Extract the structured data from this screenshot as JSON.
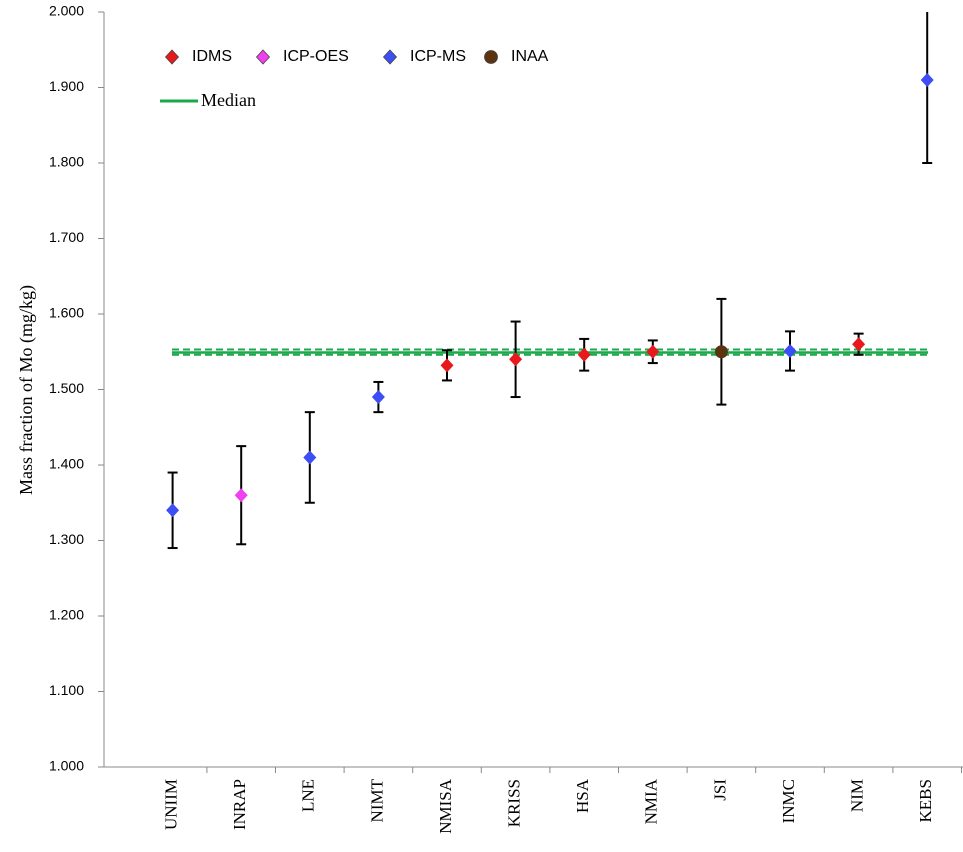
{
  "chart_data": {
    "type": "scatter",
    "y_label": "Mass fraction of Mo (mg/kg)",
    "categories": [
      "UNIIM",
      "INRAP",
      "LNE",
      "NIMT",
      "NMISA",
      "KRISS",
      "HSA",
      "NMIA",
      "JSI",
      "INMC",
      "NIM",
      "KEBS"
    ],
    "series": [
      {
        "name": "IDMS",
        "color": "#e8191c",
        "marker": "diamond",
        "values": [
          null,
          null,
          null,
          null,
          1.532,
          1.54,
          1.546,
          1.55,
          null,
          null,
          1.56,
          null
        ],
        "errors": [
          null,
          null,
          null,
          null,
          0.02,
          0.05,
          0.021,
          0.015,
          null,
          null,
          0.014,
          null
        ]
      },
      {
        "name": "ICP-OES",
        "color": "#f040f0",
        "marker": "diamond",
        "values": [
          null,
          1.36,
          null,
          null,
          null,
          null,
          null,
          null,
          null,
          null,
          null,
          null
        ],
        "errors": [
          null,
          0.065,
          null,
          null,
          null,
          null,
          null,
          null,
          null,
          null,
          null,
          null
        ]
      },
      {
        "name": "ICP-MS",
        "color": "#3d4ef5",
        "marker": "diamond",
        "values": [
          1.34,
          null,
          1.41,
          1.49,
          null,
          null,
          null,
          null,
          null,
          1.551,
          null,
          1.91
        ],
        "errors": [
          0.05,
          null,
          0.06,
          0.02,
          null,
          null,
          null,
          null,
          null,
          0.026,
          null,
          0.11
        ]
      },
      {
        "name": "INAA",
        "color": "#5c3310",
        "marker": "circle",
        "values": [
          null,
          null,
          null,
          null,
          null,
          null,
          null,
          null,
          1.55,
          null,
          null,
          null
        ],
        "errors": [
          null,
          null,
          null,
          null,
          null,
          null,
          null,
          null,
          0.07,
          null,
          null,
          null
        ]
      }
    ],
    "median": {
      "name": "Median",
      "value": 1.549,
      "band": [
        1.546,
        1.553
      ],
      "color": "#19a84a"
    },
    "ylim": [
      1.0,
      2.0
    ],
    "yticks": [
      {
        "value": 1.0,
        "label": "1.000"
      },
      {
        "value": 1.1,
        "label": "1.100"
      },
      {
        "value": 1.2,
        "label": "1.200"
      },
      {
        "value": 1.3,
        "label": "1.300"
      },
      {
        "value": 1.4,
        "label": "1.400"
      },
      {
        "value": 1.5,
        "label": "1.500"
      },
      {
        "value": 1.6,
        "label": "1.600"
      },
      {
        "value": 1.7,
        "label": "1.700"
      },
      {
        "value": 1.8,
        "label": "1.800"
      },
      {
        "value": 1.9,
        "label": "1.900"
      },
      {
        "value": 2.0,
        "label": "2.000"
      }
    ],
    "grid": false
  }
}
